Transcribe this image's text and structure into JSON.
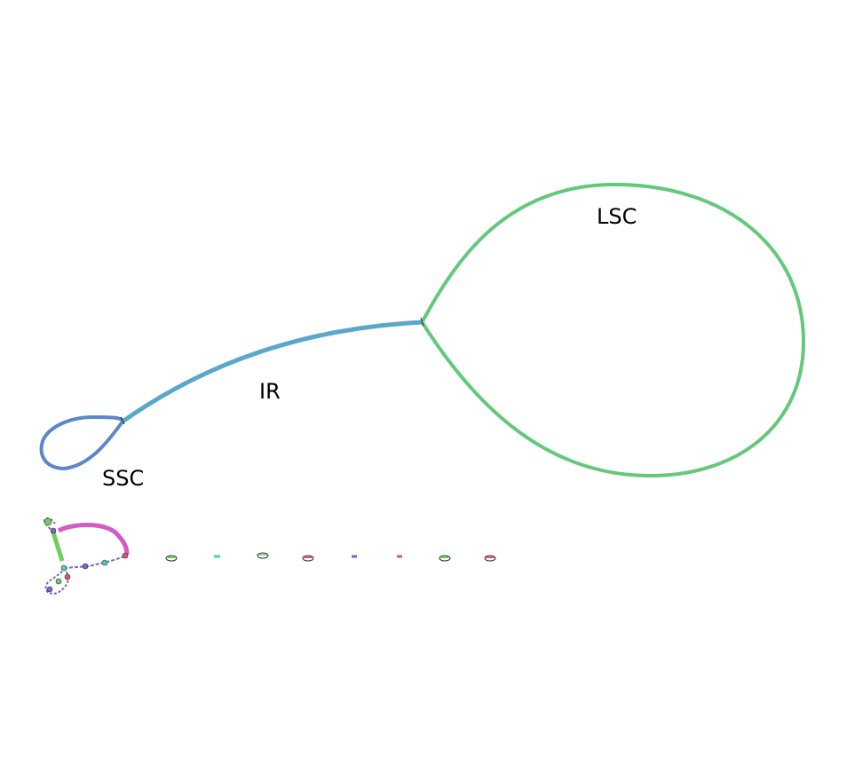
{
  "labels": {
    "lsc": "LSC",
    "ir": "IR",
    "ssc": "SSC"
  },
  "colors": {
    "lsc": "#63c97a",
    "ir": "#5aa8c9",
    "ssc": "#5b87c9",
    "fragment_pink": "#d25bc4",
    "fragment_green": "#6fcf5a",
    "fragment_purple": "#7a66d1",
    "fragment_teal": "#4fd0a8",
    "fragment_red": "#d35b6e",
    "node_outline": "#333333"
  }
}
